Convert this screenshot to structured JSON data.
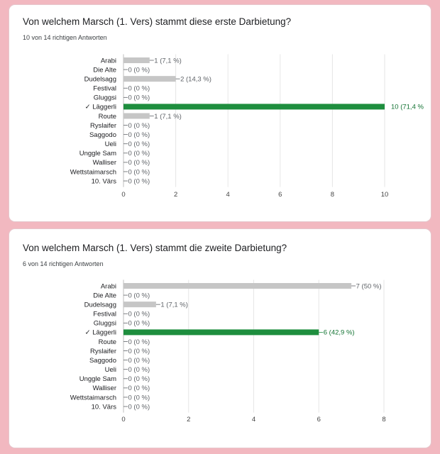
{
  "colors": {
    "gray_bar": "#c6c6c6",
    "correct_bar": "#1e8e3e",
    "label_gray": "#5f6368",
    "correct_label": "#137333",
    "grid": "#e6e6e6"
  },
  "cards": [
    {
      "title": "Von welchem Marsch (1. Vers) stammt diese erste Darbietung?",
      "subtitle": "10 von 14 richtigen Antworten"
    },
    {
      "title": "Von welchem Marsch (1. Vers) stammt die zweite Darbietung?",
      "subtitle": "6 von 14 richtigen Antworten"
    }
  ],
  "chart_data": [
    {
      "type": "bar",
      "orientation": "horizontal",
      "categories": [
        "Arabi",
        "Die Alte",
        "Dudelsagg",
        "Festival",
        "Gluggsi",
        "✓ Läggerli",
        "Route",
        "Ryslaifer",
        "Saggodo",
        "Ueli",
        "Unggle Sam",
        "Walliser",
        "Wettstaimarsch",
        "10. Värs"
      ],
      "values": [
        1,
        0,
        2,
        0,
        0,
        10,
        1,
        0,
        0,
        0,
        0,
        0,
        0,
        0
      ],
      "data_labels": [
        "1 (7,1 %)",
        "0 (0 %)",
        "2 (14,3 %)",
        "0 (0 %)",
        "0 (0 %)",
        "10 (71,4 %",
        "1 (7,1 %)",
        "0 (0 %)",
        "0 (0 %)",
        "0 (0 %)",
        "0 (0 %)",
        "0 (0 %)",
        "0 (0 %)",
        "0 (0 %)"
      ],
      "correct_index": 5,
      "xlim": [
        0,
        10
      ],
      "xticks": [
        0,
        2,
        4,
        6,
        8,
        10
      ],
      "grid": true
    },
    {
      "type": "bar",
      "orientation": "horizontal",
      "categories": [
        "Arabi",
        "Die Alte",
        "Dudelsagg",
        "Festival",
        "Gluggsi",
        "✓ Läggerli",
        "Route",
        "Ryslaifer",
        "Saggodo",
        "Ueli",
        "Unggle Sam",
        "Walliser",
        "Wettstaimarsch",
        "10. Värs"
      ],
      "values": [
        7,
        0,
        1,
        0,
        0,
        6,
        0,
        0,
        0,
        0,
        0,
        0,
        0,
        0
      ],
      "data_labels": [
        "7 (50 %)",
        "0 (0 %)",
        "1 (7,1 %)",
        "0 (0 %)",
        "0 (0 %)",
        "6 (42,9 %)",
        "0 (0 %)",
        "0 (0 %)",
        "0 (0 %)",
        "0 (0 %)",
        "0 (0 %)",
        "0 (0 %)",
        "0 (0 %)",
        "0 (0 %)"
      ],
      "correct_index": 5,
      "xlim": [
        0,
        8
      ],
      "xticks": [
        0,
        2,
        4,
        6,
        8
      ],
      "grid": true
    }
  ]
}
